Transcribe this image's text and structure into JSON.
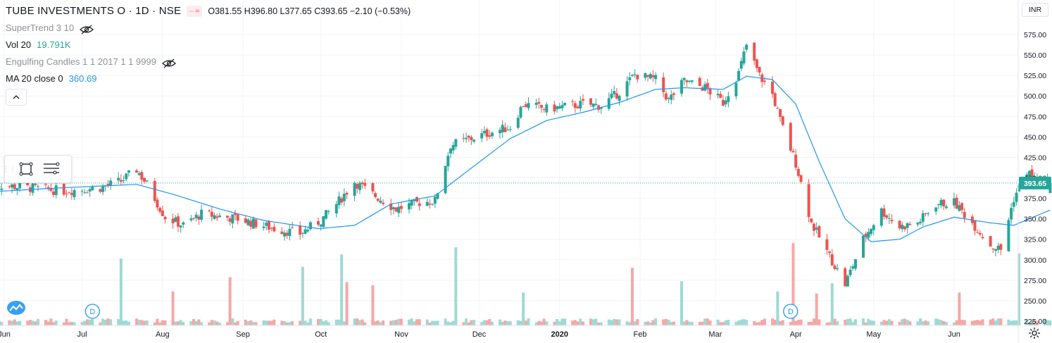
{
  "header": {
    "symbol_title": "TUBE INVESTMENTS O · 1D · NSE",
    "ohlc": {
      "o_label": "O",
      "o": "381.55",
      "h_label": "H",
      "h": "396.80",
      "l_label": "L",
      "l": "377.65",
      "c_label": "C",
      "c": "393.65",
      "change": "−2.10 (−0.53%)"
    }
  },
  "indicators": {
    "supertrend": {
      "label": "SuperTrend 3 10"
    },
    "volume": {
      "label": "Vol 20",
      "value": "19.791K"
    },
    "engulfing": {
      "label": "Engulfing Candles 1 1 2017 1 1 9999"
    },
    "ma": {
      "label": "MA 20 close 0",
      "value": "360.69"
    }
  },
  "currency": "INR",
  "last_price_label": "393.65",
  "dividend_marker": "D",
  "colors": {
    "up": "#26a69a",
    "down": "#ef5350",
    "ma": "#2196f3",
    "vol_up": "#a1d9d3",
    "vol_down": "#f5a8a6",
    "grid": "#f0f3fa",
    "axis_text": "#131722"
  },
  "chart_data": {
    "type": "candlestick",
    "title": "TUBE INVESTMENTS O · 1D · NSE",
    "y_ticks": [
      "575.00",
      "550.00",
      "525.00",
      "500.00",
      "475.00",
      "450.00",
      "425.00",
      "400.00",
      "375.00",
      "350.00",
      "325.00",
      "300.00",
      "275.00",
      "250.00",
      "225.00"
    ],
    "ylim": [
      220,
      590
    ],
    "x_ticks": [
      "Jun",
      "Jul",
      "Aug",
      "Sep",
      "Oct",
      "Nov",
      "Dec",
      "2020",
      "Feb",
      "Mar",
      "Apr",
      "May",
      "Jun"
    ],
    "x_tick_dates": [
      "2019-06-01",
      "2019-07-01",
      "2019-08-01",
      "2019-09-01",
      "2019-10-01",
      "2019-11-01",
      "2019-12-01",
      "2020-01-01",
      "2020-02-01",
      "2020-03-01",
      "2020-04-01",
      "2020-05-01",
      "2020-06-01"
    ],
    "close_anchors": [
      {
        "date": "2019-05-27",
        "close": 392
      },
      {
        "date": "2019-06-10",
        "close": 388
      },
      {
        "date": "2019-06-24",
        "close": 384
      },
      {
        "date": "2019-07-08",
        "close": 388
      },
      {
        "date": "2019-07-16",
        "close": 396
      },
      {
        "date": "2019-07-22",
        "close": 410
      },
      {
        "date": "2019-07-26",
        "close": 392
      },
      {
        "date": "2019-08-02",
        "close": 352
      },
      {
        "date": "2019-08-09",
        "close": 342
      },
      {
        "date": "2019-08-16",
        "close": 356
      },
      {
        "date": "2019-08-30",
        "close": 350
      },
      {
        "date": "2019-09-13",
        "close": 338
      },
      {
        "date": "2019-09-23",
        "close": 332
      },
      {
        "date": "2019-10-01",
        "close": 348
      },
      {
        "date": "2019-10-07",
        "close": 368
      },
      {
        "date": "2019-10-14",
        "close": 395
      },
      {
        "date": "2019-10-21",
        "close": 380
      },
      {
        "date": "2019-10-30",
        "close": 362
      },
      {
        "date": "2019-11-08",
        "close": 370
      },
      {
        "date": "2019-11-14",
        "close": 372
      },
      {
        "date": "2019-11-20",
        "close": 440
      },
      {
        "date": "2019-11-28",
        "close": 448
      },
      {
        "date": "2019-12-06",
        "close": 456
      },
      {
        "date": "2019-12-13",
        "close": 462
      },
      {
        "date": "2019-12-18",
        "close": 490
      },
      {
        "date": "2019-12-27",
        "close": 484
      },
      {
        "date": "2020-01-10",
        "close": 490
      },
      {
        "date": "2020-01-17",
        "close": 488
      },
      {
        "date": "2020-01-24",
        "close": 505
      },
      {
        "date": "2020-01-30",
        "close": 526
      },
      {
        "date": "2020-02-07",
        "close": 520
      },
      {
        "date": "2020-02-12",
        "close": 495
      },
      {
        "date": "2020-02-18",
        "close": 518
      },
      {
        "date": "2020-02-26",
        "close": 510
      },
      {
        "date": "2020-03-04",
        "close": 492
      },
      {
        "date": "2020-03-10",
        "close": 528
      },
      {
        "date": "2020-03-13",
        "close": 562
      },
      {
        "date": "2020-03-18",
        "close": 525
      },
      {
        "date": "2020-03-23",
        "close": 502
      },
      {
        "date": "2020-03-26",
        "close": 470
      },
      {
        "date": "2020-04-01",
        "close": 418
      },
      {
        "date": "2020-04-07",
        "close": 345
      },
      {
        "date": "2020-04-13",
        "close": 310
      },
      {
        "date": "2020-04-20",
        "close": 270
      },
      {
        "date": "2020-04-27",
        "close": 325
      },
      {
        "date": "2020-05-04",
        "close": 360
      },
      {
        "date": "2020-05-11",
        "close": 340
      },
      {
        "date": "2020-05-18",
        "close": 345
      },
      {
        "date": "2020-05-25",
        "close": 368
      },
      {
        "date": "2020-06-01",
        "close": 370
      },
      {
        "date": "2020-06-08",
        "close": 345
      },
      {
        "date": "2020-06-15",
        "close": 318
      },
      {
        "date": "2020-06-19",
        "close": 312
      },
      {
        "date": "2020-06-24",
        "close": 375
      },
      {
        "date": "2020-06-29",
        "close": 408
      },
      {
        "date": "2020-07-03",
        "close": 396
      },
      {
        "date": "2020-07-08",
        "close": 393.65
      }
    ],
    "ma20_anchors": [
      {
        "date": "2019-05-27",
        "value": 383
      },
      {
        "date": "2019-06-24",
        "value": 388
      },
      {
        "date": "2019-07-22",
        "value": 392
      },
      {
        "date": "2019-08-05",
        "value": 380
      },
      {
        "date": "2019-08-23",
        "value": 362
      },
      {
        "date": "2019-09-09",
        "value": 348
      },
      {
        "date": "2019-09-30",
        "value": 338
      },
      {
        "date": "2019-10-14",
        "value": 342
      },
      {
        "date": "2019-10-28",
        "value": 368
      },
      {
        "date": "2019-11-14",
        "value": 378
      },
      {
        "date": "2019-11-28",
        "value": 412
      },
      {
        "date": "2019-12-13",
        "value": 448
      },
      {
        "date": "2019-12-27",
        "value": 470
      },
      {
        "date": "2020-01-10",
        "value": 480
      },
      {
        "date": "2020-01-24",
        "value": 492
      },
      {
        "date": "2020-02-07",
        "value": 508
      },
      {
        "date": "2020-02-18",
        "value": 510
      },
      {
        "date": "2020-03-04",
        "value": 508
      },
      {
        "date": "2020-03-13",
        "value": 524
      },
      {
        "date": "2020-03-23",
        "value": 520
      },
      {
        "date": "2020-04-01",
        "value": 490
      },
      {
        "date": "2020-04-10",
        "value": 420
      },
      {
        "date": "2020-04-20",
        "value": 350
      },
      {
        "date": "2020-04-30",
        "value": 322
      },
      {
        "date": "2020-05-11",
        "value": 325
      },
      {
        "date": "2020-05-20",
        "value": 340
      },
      {
        "date": "2020-06-01",
        "value": 352
      },
      {
        "date": "2020-06-15",
        "value": 345
      },
      {
        "date": "2020-06-24",
        "value": 342
      },
      {
        "date": "2020-07-08",
        "value": 360.69
      }
    ],
    "volume_spikes": [
      {
        "date": "2019-07-16",
        "height": 0.65,
        "up": true
      },
      {
        "date": "2019-08-05",
        "height": 0.33,
        "up": false
      },
      {
        "date": "2019-08-27",
        "height": 0.47,
        "up": false
      },
      {
        "date": "2019-09-24",
        "height": 0.57,
        "up": true
      },
      {
        "date": "2019-10-09",
        "height": 0.69,
        "up": true
      },
      {
        "date": "2019-10-11",
        "height": 0.42,
        "up": false
      },
      {
        "date": "2019-10-21",
        "height": 0.39,
        "up": false
      },
      {
        "date": "2019-11-22",
        "height": 0.76,
        "up": true
      },
      {
        "date": "2019-12-18",
        "height": 0.32,
        "up": true
      },
      {
        "date": "2020-01-29",
        "height": 0.56,
        "up": false
      },
      {
        "date": "2020-02-17",
        "height": 0.43,
        "up": true
      },
      {
        "date": "2020-03-25",
        "height": 0.33,
        "up": true
      },
      {
        "date": "2020-03-31",
        "height": 0.8,
        "up": false
      },
      {
        "date": "2020-04-09",
        "height": 0.31,
        "up": false
      },
      {
        "date": "2020-04-15",
        "height": 0.41,
        "up": true
      },
      {
        "date": "2020-06-03",
        "height": 0.32,
        "up": false
      },
      {
        "date": "2020-06-26",
        "height": 0.7,
        "up": true
      }
    ],
    "dividend_dates": [
      "2019-07-05",
      "2020-03-30"
    ]
  }
}
